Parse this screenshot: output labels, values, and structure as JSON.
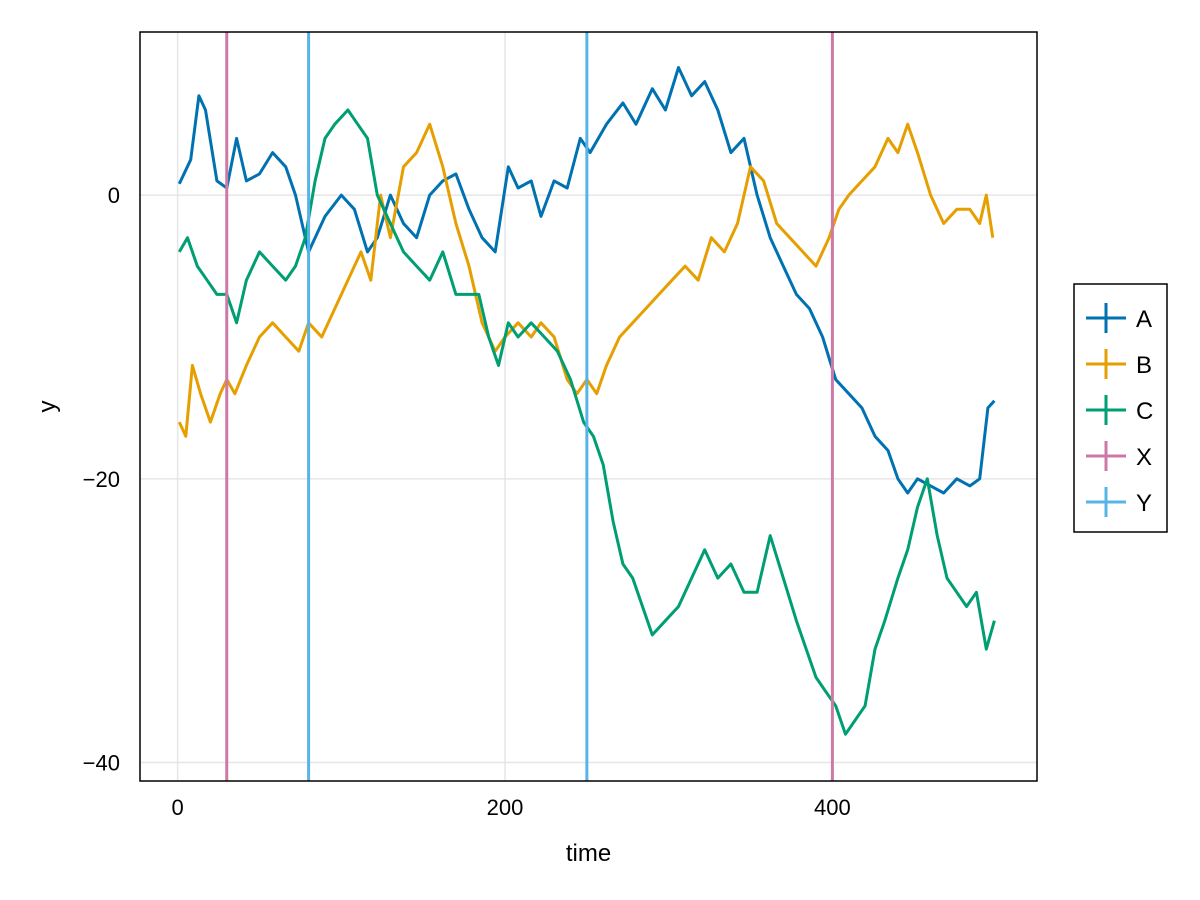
{
  "chart_data": {
    "type": "line",
    "title": "",
    "xlabel": "time",
    "ylabel": "y",
    "xlim": [
      -23,
      525
    ],
    "ylim": [
      -41.3,
      11.5
    ],
    "x_ticks": [
      0,
      200,
      400
    ],
    "x_tick_labels": [
      "0",
      "200",
      "400"
    ],
    "y_ticks": [
      0,
      -20,
      -40
    ],
    "y_tick_labels": [
      "0",
      "−20",
      "−40"
    ],
    "grid": true,
    "legend_position": "right",
    "series": [
      {
        "name": "A",
        "color": "#0072b2",
        "x": [
          1,
          8,
          13,
          17,
          24,
          30,
          36,
          42,
          50,
          58,
          66,
          72,
          80,
          90,
          100,
          108,
          116,
          122,
          130,
          138,
          146,
          154,
          162,
          170,
          178,
          186,
          194,
          202,
          208,
          216,
          222,
          230,
          238,
          246,
          252,
          262,
          272,
          280,
          290,
          298,
          306,
          314,
          322,
          330,
          338,
          346,
          354,
          362,
          370,
          378,
          386,
          394,
          402,
          410,
          418,
          426,
          434,
          440,
          446,
          452,
          460,
          468,
          476,
          484,
          490,
          495,
          499
        ],
        "y": [
          0.8,
          2.5,
          7,
          6,
          1,
          0.5,
          4,
          1,
          1.5,
          3,
          2,
          0,
          -4,
          -1.5,
          0,
          -1,
          -4,
          -3,
          0,
          -2,
          -3,
          0,
          1,
          1.5,
          -1,
          -3,
          -4,
          2,
          0.5,
          1,
          -1.5,
          1,
          0.5,
          4,
          3,
          5,
          6.5,
          5,
          7.5,
          6,
          9,
          7,
          8,
          6,
          3,
          4,
          0,
          -3,
          -5,
          -7,
          -8,
          -10,
          -13,
          -14,
          -15,
          -17,
          -18,
          -20,
          -21,
          -20,
          -20.5,
          -21,
          -20,
          -20.5,
          -20,
          -15,
          -14.5
        ]
      },
      {
        "name": "B",
        "color": "#e69f00",
        "x": [
          1,
          5,
          9,
          14,
          20,
          26,
          30,
          35,
          42,
          50,
          58,
          66,
          74,
          80,
          88,
          96,
          104,
          112,
          118,
          124,
          130,
          138,
          146,
          154,
          162,
          170,
          178,
          186,
          194,
          200,
          208,
          216,
          222,
          230,
          238,
          244,
          250,
          256,
          262,
          270,
          278,
          286,
          294,
          302,
          310,
          318,
          326,
          334,
          342,
          350,
          358,
          366,
          374,
          382,
          390,
          398,
          404,
          410,
          418,
          426,
          434,
          440,
          446,
          452,
          460,
          468,
          476,
          484,
          490,
          494,
          498
        ],
        "y": [
          -16,
          -17,
          -12,
          -14,
          -16,
          -14,
          -13,
          -14,
          -12,
          -10,
          -9,
          -10,
          -11,
          -9,
          -10,
          -8,
          -6,
          -4,
          -6,
          0,
          -3,
          2,
          3,
          5,
          2,
          -2,
          -5,
          -9,
          -11,
          -10,
          -9,
          -10,
          -9,
          -10,
          -13,
          -14,
          -13,
          -14,
          -12,
          -10,
          -9,
          -8,
          -7,
          -6,
          -5,
          -6,
          -3,
          -4,
          -2,
          2,
          1,
          -2,
          -3,
          -4,
          -5,
          -3,
          -1,
          0,
          1,
          2,
          4,
          3,
          5,
          3,
          0,
          -2,
          -1,
          -1,
          -2,
          0,
          -3
        ]
      },
      {
        "name": "C",
        "color": "#009e73",
        "x": [
          1,
          6,
          12,
          18,
          24,
          30,
          36,
          42,
          50,
          58,
          66,
          72,
          78,
          84,
          90,
          96,
          104,
          110,
          116,
          122,
          130,
          138,
          146,
          154,
          162,
          170,
          178,
          184,
          190,
          196,
          202,
          208,
          216,
          224,
          232,
          240,
          248,
          254,
          260,
          266,
          272,
          278,
          284,
          290,
          298,
          306,
          314,
          322,
          330,
          338,
          346,
          354,
          362,
          370,
          378,
          384,
          390,
          396,
          402,
          408,
          414,
          420,
          426,
          432,
          440,
          446,
          452,
          458,
          464,
          470,
          476,
          482,
          488,
          494,
          499
        ],
        "y": [
          -4,
          -3,
          -5,
          -6,
          -7,
          -7,
          -9,
          -6,
          -4,
          -5,
          -6,
          -5,
          -3,
          1,
          4,
          5,
          6,
          5,
          4,
          0,
          -2,
          -4,
          -5,
          -6,
          -4,
          -7,
          -7,
          -7,
          -10,
          -12,
          -9,
          -10,
          -9,
          -10,
          -11,
          -13,
          -16,
          -17,
          -19,
          -23,
          -26,
          -27,
          -29,
          -31,
          -30,
          -29,
          -27,
          -25,
          -27,
          -26,
          -28,
          -28,
          -24,
          -27,
          -30,
          -32,
          -34,
          -35,
          -36,
          -38,
          -37,
          -36,
          -32,
          -30,
          -27,
          -25,
          -22,
          -20,
          -24,
          -27,
          -28,
          -29,
          -28,
          -32,
          -30
        ]
      },
      {
        "name": "X",
        "color": "#cc79a7",
        "x": [
          30,
          400
        ],
        "vline": true
      },
      {
        "name": "Y",
        "color": "#56b4e9",
        "x": [
          80,
          250
        ],
        "vline": true
      }
    ]
  }
}
